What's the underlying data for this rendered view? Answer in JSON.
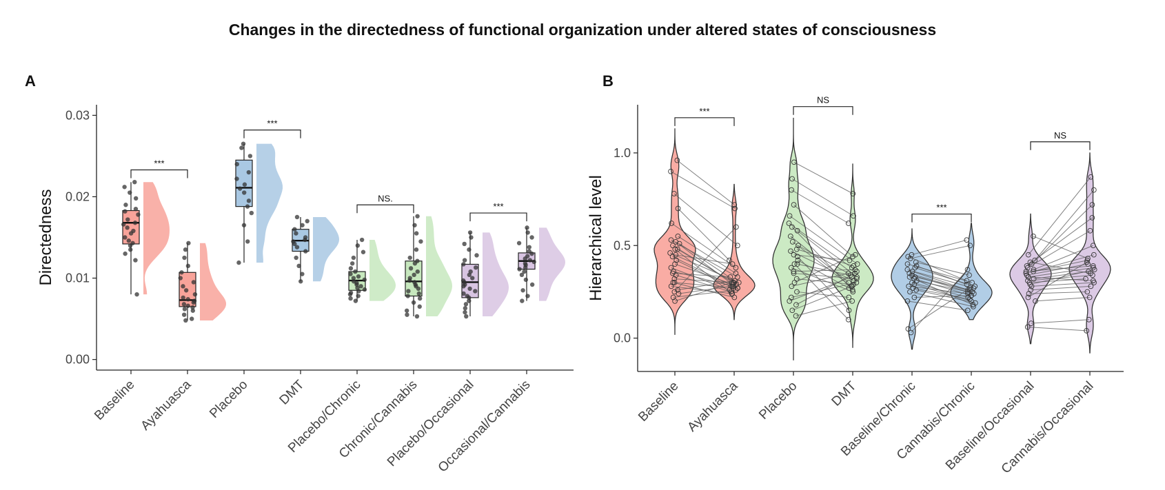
{
  "figure": {
    "title": "Changes in the directedness of functional organization under altered states of consciousness",
    "panel_a_label": "A",
    "panel_b_label": "B"
  },
  "colors": {
    "red": "#f8a39a",
    "blue": "#a9c8e3",
    "green": "#c7e8be",
    "purple": "#d8c4e2"
  },
  "chart_data": [
    {
      "type": "box",
      "panel": "A",
      "ylabel": "Directedness",
      "xlabel": "",
      "ylim": [
        -0.0013,
        0.0313
      ],
      "yticks": [
        0.0,
        0.01,
        0.02,
        0.03
      ],
      "ytick_labels": [
        "0.00",
        "0.01",
        "0.02",
        "0.03"
      ],
      "categories": [
        "Baseline",
        "Ayahuasca",
        "Placebo",
        "DMT",
        "Placebo/Chronic",
        "Chronic/Cannabis",
        "Placebo/Occasional",
        "Occasional/Cannabis"
      ],
      "category_colors": [
        "red",
        "red",
        "blue",
        "blue",
        "green",
        "green",
        "purple",
        "purple"
      ],
      "boxes": [
        {
          "min": 0.008,
          "q1": 0.0142,
          "median": 0.0168,
          "q3": 0.0183,
          "max": 0.0218
        },
        {
          "min": 0.0048,
          "q1": 0.0065,
          "median": 0.0073,
          "q3": 0.0107,
          "max": 0.0143
        },
        {
          "min": 0.0119,
          "q1": 0.0188,
          "median": 0.0211,
          "q3": 0.0245,
          "max": 0.0265
        },
        {
          "min": 0.0096,
          "q1": 0.0133,
          "median": 0.0146,
          "q3": 0.016,
          "max": 0.0175
        },
        {
          "min": 0.0072,
          "q1": 0.0085,
          "median": 0.0097,
          "q3": 0.0108,
          "max": 0.0147
        },
        {
          "min": 0.0053,
          "q1": 0.0078,
          "median": 0.0096,
          "q3": 0.0121,
          "max": 0.0176
        },
        {
          "min": 0.0053,
          "q1": 0.0076,
          "median": 0.0095,
          "q3": 0.0117,
          "max": 0.0156
        },
        {
          "min": 0.0072,
          "q1": 0.0111,
          "median": 0.0121,
          "q3": 0.0131,
          "max": 0.0162
        }
      ],
      "points": [
        [
          0.0218,
          0.0212,
          0.0205,
          0.0198,
          0.019,
          0.0185,
          0.0182,
          0.0178,
          0.0172,
          0.0168,
          0.0166,
          0.0162,
          0.0158,
          0.0155,
          0.015,
          0.0146,
          0.0143,
          0.014,
          0.0135,
          0.013,
          0.0122,
          0.008
        ],
        [
          0.0143,
          0.0135,
          0.0125,
          0.0115,
          0.0107,
          0.01,
          0.0095,
          0.009,
          0.0085,
          0.008,
          0.0076,
          0.0074,
          0.0072,
          0.007,
          0.0068,
          0.0066,
          0.0064,
          0.0062,
          0.006,
          0.0055,
          0.005,
          0.0048
        ],
        [
          0.0265,
          0.026,
          0.025,
          0.024,
          0.023,
          0.0222,
          0.0215,
          0.021,
          0.0205,
          0.0195,
          0.0188,
          0.018,
          0.0165,
          0.0145,
          0.0119
        ],
        [
          0.0175,
          0.017,
          0.0165,
          0.016,
          0.0155,
          0.015,
          0.0147,
          0.0145,
          0.0142,
          0.0138,
          0.0133,
          0.0125,
          0.0115,
          0.0105,
          0.0096
        ],
        [
          0.0147,
          0.014,
          0.0132,
          0.0125,
          0.0118,
          0.0112,
          0.0108,
          0.0105,
          0.0102,
          0.01,
          0.0098,
          0.0096,
          0.0094,
          0.0092,
          0.009,
          0.0088,
          0.0086,
          0.0084,
          0.0082,
          0.008,
          0.0078,
          0.0075,
          0.0072
        ],
        [
          0.0176,
          0.0165,
          0.0155,
          0.0145,
          0.0135,
          0.0125,
          0.0121,
          0.0118,
          0.0112,
          0.0108,
          0.0104,
          0.01,
          0.0097,
          0.0095,
          0.0092,
          0.009,
          0.0087,
          0.0084,
          0.0081,
          0.0078,
          0.0075,
          0.007,
          0.0065,
          0.006,
          0.0055,
          0.0053
        ],
        [
          0.0156,
          0.015,
          0.0142,
          0.0135,
          0.0128,
          0.0122,
          0.0117,
          0.0113,
          0.0108,
          0.0104,
          0.01,
          0.0097,
          0.0095,
          0.0092,
          0.009,
          0.0087,
          0.0084,
          0.0081,
          0.0078,
          0.0076,
          0.0072,
          0.0068,
          0.0063,
          0.0058,
          0.0053
        ],
        [
          0.0162,
          0.0156,
          0.015,
          0.0143,
          0.0138,
          0.0133,
          0.013,
          0.0127,
          0.0124,
          0.0122,
          0.012,
          0.0118,
          0.0116,
          0.0113,
          0.0111,
          0.0108,
          0.0104,
          0.0098,
          0.0092,
          0.0085,
          0.0078,
          0.0072
        ]
      ],
      "comparisons": [
        {
          "from": 0,
          "to": 1,
          "label": "***",
          "y": 0.0233
        },
        {
          "from": 2,
          "to": 3,
          "label": "***",
          "y": 0.0282
        },
        {
          "from": 4,
          "to": 5,
          "label": "NS.",
          "y": 0.019
        },
        {
          "from": 6,
          "to": 7,
          "label": "***",
          "y": 0.018
        }
      ]
    },
    {
      "type": "violin",
      "panel": "B",
      "ylabel": "Hierarchical level",
      "xlabel": "",
      "ylim": [
        -0.18,
        1.26
      ],
      "yticks": [
        0.0,
        0.5,
        1.0
      ],
      "ytick_labels": [
        "0.0",
        "0.5",
        "1.0"
      ],
      "categories": [
        "Baseline",
        "Ayahuasca",
        "Placebo",
        "DMT",
        "Baseline/Chronic",
        "Cannabis/Chronic",
        "Baseline/Occasional",
        "Cannabis/Occasional"
      ],
      "category_colors": [
        "red",
        "red",
        "green",
        "green",
        "blue",
        "blue",
        "purple",
        "purple"
      ],
      "violin_ranges": [
        [
          0.02,
          1.13
        ],
        [
          0.1,
          0.83
        ],
        [
          -0.12,
          1.19
        ],
        [
          -0.05,
          0.94
        ],
        [
          -0.06,
          0.59
        ],
        [
          0.1,
          0.62
        ],
        [
          -0.03,
          0.67
        ],
        [
          -0.08,
          1.0
        ]
      ],
      "pairs": [
        {
          "left": 0,
          "right": 1,
          "values": [
            [
              0.96,
              0.72
            ],
            [
              0.9,
              0.7
            ],
            [
              0.78,
              0.5
            ],
            [
              0.7,
              0.42
            ],
            [
              0.62,
              0.38
            ],
            [
              0.55,
              0.35
            ],
            [
              0.53,
              0.33
            ],
            [
              0.51,
              0.31
            ],
            [
              0.5,
              0.3
            ],
            [
              0.48,
              0.29
            ],
            [
              0.46,
              0.3
            ],
            [
              0.44,
              0.28
            ],
            [
              0.42,
              0.27
            ],
            [
              0.4,
              0.29
            ],
            [
              0.38,
              0.26
            ],
            [
              0.36,
              0.28
            ],
            [
              0.34,
              0.25
            ],
            [
              0.32,
              0.3
            ],
            [
              0.3,
              0.27
            ],
            [
              0.28,
              0.24
            ],
            [
              0.26,
              0.31
            ],
            [
              0.24,
              0.28
            ],
            [
              0.22,
              0.26
            ],
            [
              0.2,
              0.3
            ],
            [
              0.45,
              0.4
            ],
            [
              0.35,
              0.33
            ],
            [
              0.52,
              0.27
            ],
            [
              0.48,
              0.24
            ],
            [
              0.25,
              0.6
            ],
            [
              0.3,
              0.22
            ]
          ]
        },
        {
          "left": 2,
          "right": 3,
          "values": [
            [
              0.95,
              0.78
            ],
            [
              0.86,
              0.66
            ],
            [
              0.8,
              0.62
            ],
            [
              0.72,
              0.44
            ],
            [
              0.66,
              0.4
            ],
            [
              0.62,
              0.38
            ],
            [
              0.58,
              0.33
            ],
            [
              0.55,
              0.3
            ],
            [
              0.52,
              0.28
            ],
            [
              0.5,
              0.35
            ],
            [
              0.47,
              0.31
            ],
            [
              0.45,
              0.42
            ],
            [
              0.42,
              0.27
            ],
            [
              0.4,
              0.34
            ],
            [
              0.38,
              0.25
            ],
            [
              0.35,
              0.32
            ],
            [
              0.32,
              0.29
            ],
            [
              0.28,
              0.36
            ],
            [
              0.25,
              0.22
            ],
            [
              0.22,
              0.3
            ],
            [
              0.18,
              0.35
            ],
            [
              0.15,
              0.28
            ],
            [
              0.12,
              0.2
            ],
            [
              0.44,
              0.15
            ],
            [
              0.36,
              0.37
            ],
            [
              0.3,
              0.45
            ],
            [
              0.6,
              0.26
            ],
            [
              0.48,
              0.39
            ],
            [
              0.4,
              0.1
            ],
            [
              0.2,
              0.33
            ]
          ]
        },
        {
          "left": 4,
          "right": 5,
          "values": [
            [
              0.45,
              0.53
            ],
            [
              0.43,
              0.5
            ],
            [
              0.41,
              0.34
            ],
            [
              0.4,
              0.3
            ],
            [
              0.38,
              0.28
            ],
            [
              0.37,
              0.27
            ],
            [
              0.36,
              0.26
            ],
            [
              0.35,
              0.25
            ],
            [
              0.34,
              0.24
            ],
            [
              0.33,
              0.26
            ],
            [
              0.32,
              0.23
            ],
            [
              0.31,
              0.25
            ],
            [
              0.3,
              0.22
            ],
            [
              0.29,
              0.2
            ],
            [
              0.28,
              0.24
            ],
            [
              0.27,
              0.21
            ],
            [
              0.26,
              0.19
            ],
            [
              0.25,
              0.17
            ],
            [
              0.22,
              0.23
            ],
            [
              0.2,
              0.15
            ],
            [
              0.05,
              0.27
            ],
            [
              0.03,
              0.37
            ],
            [
              0.39,
              0.29
            ],
            [
              0.44,
              0.31
            ],
            [
              0.33,
              0.18
            ]
          ]
        },
        {
          "left": 6,
          "right": 7,
          "values": [
            [
              0.45,
              0.87
            ],
            [
              0.42,
              0.8
            ],
            [
              0.4,
              0.72
            ],
            [
              0.39,
              0.65
            ],
            [
              0.38,
              0.58
            ],
            [
              0.37,
              0.5
            ],
            [
              0.36,
              0.45
            ],
            [
              0.35,
              0.42
            ],
            [
              0.34,
              0.4
            ],
            [
              0.33,
              0.38
            ],
            [
              0.32,
              0.36
            ],
            [
              0.31,
              0.34
            ],
            [
              0.3,
              0.32
            ],
            [
              0.28,
              0.3
            ],
            [
              0.26,
              0.28
            ],
            [
              0.24,
              0.25
            ],
            [
              0.2,
              0.22
            ],
            [
              0.08,
              0.1
            ],
            [
              0.06,
              0.04
            ],
            [
              0.55,
              0.43
            ],
            [
              0.41,
              0.35
            ],
            [
              0.36,
              0.39
            ],
            [
              0.33,
              0.31
            ],
            [
              0.29,
              0.37
            ],
            [
              0.22,
              0.41
            ]
          ]
        }
      ],
      "comparisons": [
        {
          "from": 0,
          "to": 1,
          "label": "***",
          "y": 1.19
        },
        {
          "from": 2,
          "to": 3,
          "label": "NS",
          "y": 1.25
        },
        {
          "from": 4,
          "to": 5,
          "label": "***",
          "y": 0.67
        },
        {
          "from": 6,
          "to": 7,
          "label": "NS",
          "y": 1.06
        }
      ]
    }
  ]
}
